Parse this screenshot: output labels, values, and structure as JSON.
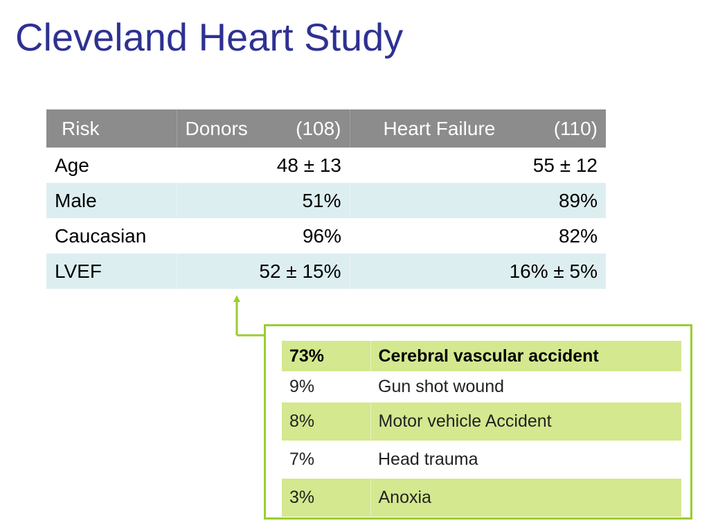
{
  "title": "Cleveland Heart Study",
  "risk_table": {
    "header": {
      "risk": "Risk",
      "donors_label": "Donors",
      "donors_count": "(108)",
      "hf_label": "Heart Failure",
      "hf_count": "(110)"
    },
    "rows": [
      {
        "label": "Age",
        "donors": "48 ± 13",
        "hf": "55 ± 12"
      },
      {
        "label": "Male",
        "donors": "51%",
        "hf": "89%"
      },
      {
        "label": "Caucasian",
        "donors": "96%",
        "hf": "82%"
      },
      {
        "label": "LVEF",
        "donors": "52 ± 15%",
        "hf": "16% ± 5%"
      }
    ]
  },
  "causes": [
    {
      "percent": "73%",
      "cause": "Cerebral vascular accident"
    },
    {
      "percent": "9%",
      "cause": "Gun shot wound"
    },
    {
      "percent": "8%",
      "cause": "Motor vehicle Accident"
    },
    {
      "percent": "7%",
      "cause": "Head trauma"
    },
    {
      "percent": "3%",
      "cause": "Anoxia"
    }
  ],
  "colors": {
    "title": "#2e3192",
    "header_bg": "#8c8c8c",
    "row_alt_bg": "#ddeef0",
    "box_border": "#9acd32",
    "cause_highlight_bg": "#d4e88f"
  }
}
